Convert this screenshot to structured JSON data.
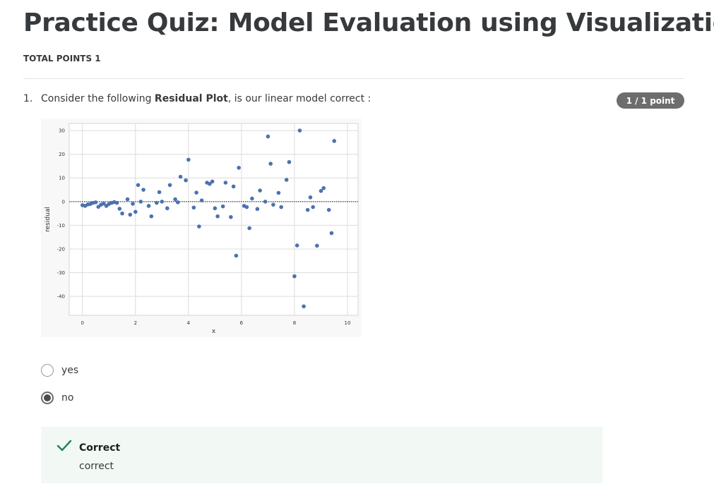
{
  "quiz": {
    "title": "Practice Quiz: Model Evaluation using Visualization",
    "total_points": "TOTAL POINTS 1"
  },
  "question": {
    "number": "1.",
    "text_before": "Consider the following ",
    "text_bold": "Residual Plot",
    "text_after": ", is our  linear model correct :",
    "points_badge": "1 / 1 point",
    "options": [
      {
        "label": "yes",
        "selected": false
      },
      {
        "label": "no",
        "selected": true
      }
    ]
  },
  "feedback": {
    "status": "Correct",
    "explanation": "correct",
    "accent_color": "#1f8354"
  },
  "chart_data": {
    "type": "scatter",
    "xlabel": "x",
    "ylabel": "residual",
    "xlim": [
      -0.5,
      10.4
    ],
    "ylim": [
      -48,
      33
    ],
    "xticks": [
      0,
      2,
      4,
      6,
      8,
      10
    ],
    "yticks": [
      30,
      20,
      10,
      0,
      -10,
      -20,
      -30,
      -40
    ],
    "grid": true,
    "zero_line": "dotted",
    "point_color": "#4c72b0",
    "points": [
      [
        0.0,
        -1.5
      ],
      [
        0.1,
        -1.8
      ],
      [
        0.2,
        -1.2
      ],
      [
        0.3,
        -1.0
      ],
      [
        0.4,
        -0.5
      ],
      [
        0.5,
        -0.3
      ],
      [
        0.6,
        -2.2
      ],
      [
        0.7,
        -1.3
      ],
      [
        0.8,
        -0.8
      ],
      [
        0.9,
        -1.8
      ],
      [
        1.0,
        -1.0
      ],
      [
        1.1,
        -0.5
      ],
      [
        1.2,
        -0.2
      ],
      [
        1.3,
        -0.5
      ],
      [
        1.4,
        -3.0
      ],
      [
        1.5,
        -5.0
      ],
      [
        1.7,
        1.0
      ],
      [
        1.8,
        -5.5
      ],
      [
        1.9,
        -0.9
      ],
      [
        2.0,
        -4.3
      ],
      [
        2.1,
        7.0
      ],
      [
        2.2,
        0.0
      ],
      [
        2.3,
        5.0
      ],
      [
        2.5,
        -1.8
      ],
      [
        2.6,
        -6.2
      ],
      [
        2.8,
        -0.5
      ],
      [
        2.9,
        4.0
      ],
      [
        3.0,
        0.0
      ],
      [
        3.2,
        -2.8
      ],
      [
        3.3,
        7.0
      ],
      [
        3.5,
        1.0
      ],
      [
        3.6,
        -0.3
      ],
      [
        3.7,
        10.5
      ],
      [
        3.9,
        9.0
      ],
      [
        4.0,
        17.7
      ],
      [
        4.2,
        -2.5
      ],
      [
        4.3,
        3.8
      ],
      [
        4.4,
        -10.5
      ],
      [
        4.5,
        0.5
      ],
      [
        4.7,
        8.0
      ],
      [
        4.8,
        7.5
      ],
      [
        4.9,
        8.5
      ],
      [
        5.0,
        -2.8
      ],
      [
        5.1,
        -6.2
      ],
      [
        5.3,
        -2.0
      ],
      [
        5.4,
        8.0
      ],
      [
        5.6,
        -6.5
      ],
      [
        5.7,
        6.4
      ],
      [
        5.8,
        -22.8
      ],
      [
        5.9,
        14.3
      ],
      [
        6.1,
        -1.8
      ],
      [
        6.2,
        -2.3
      ],
      [
        6.3,
        -11.2
      ],
      [
        6.4,
        1.3
      ],
      [
        6.6,
        -3.1
      ],
      [
        6.7,
        4.7
      ],
      [
        6.9,
        0.0
      ],
      [
        7.0,
        27.5
      ],
      [
        7.1,
        16.0
      ],
      [
        7.2,
        -1.3
      ],
      [
        7.4,
        3.7
      ],
      [
        7.5,
        -2.3
      ],
      [
        7.7,
        9.2
      ],
      [
        7.8,
        16.7
      ],
      [
        8.0,
        -31.5
      ],
      [
        8.1,
        -18.5
      ],
      [
        8.2,
        30.0
      ],
      [
        8.35,
        -44.2
      ],
      [
        8.5,
        -3.5
      ],
      [
        8.6,
        1.8
      ],
      [
        8.7,
        -2.3
      ],
      [
        8.85,
        -18.6
      ],
      [
        9.0,
        4.5
      ],
      [
        9.1,
        5.7
      ],
      [
        9.3,
        -3.5
      ],
      [
        9.4,
        -13.3
      ],
      [
        9.5,
        25.6
      ]
    ]
  }
}
